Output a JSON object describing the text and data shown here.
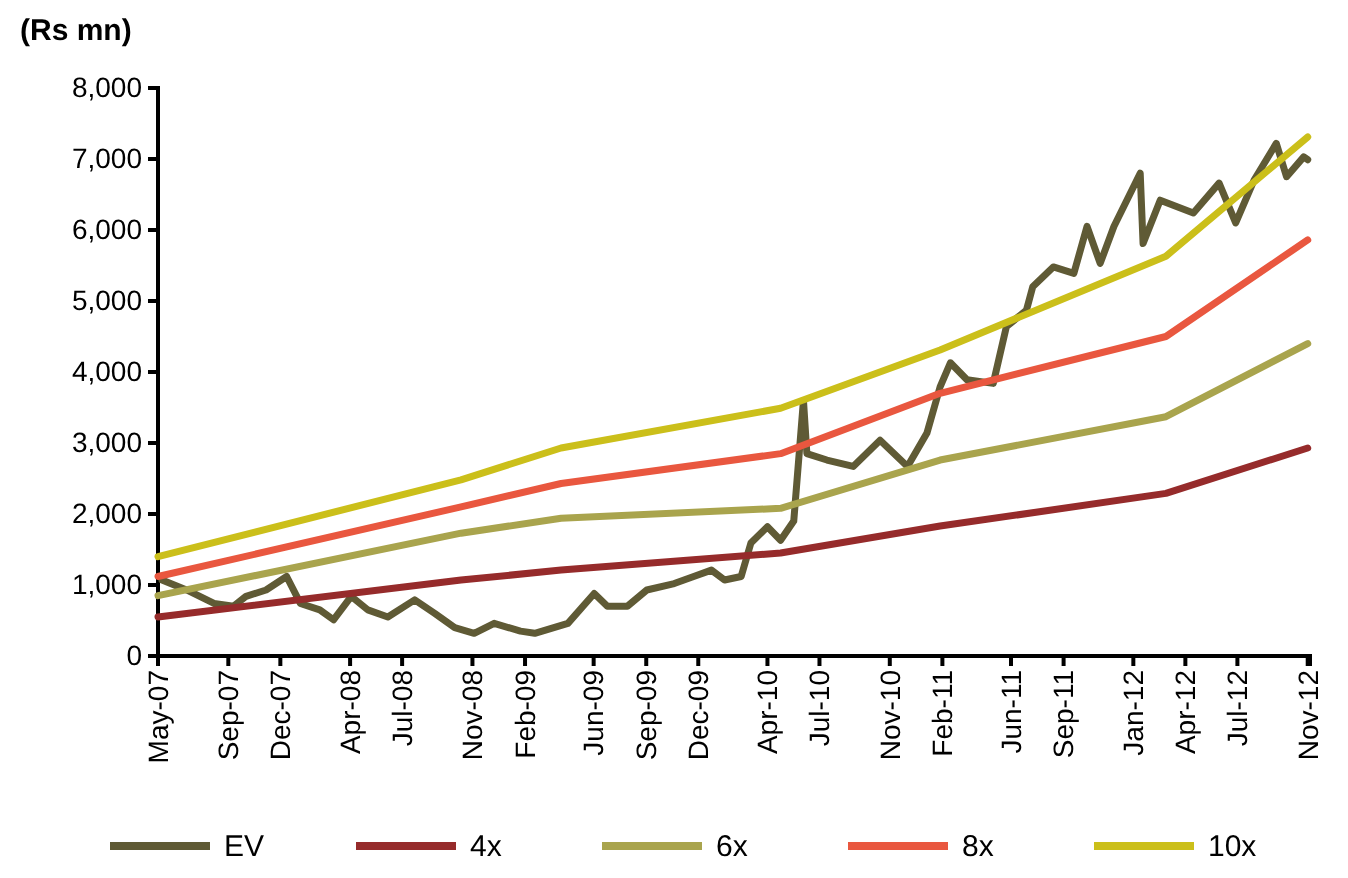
{
  "chart_data": {
    "type": "line",
    "ylabel": "(Rs mn)",
    "xlim": [
      "2007-05-01",
      "2012-11-05"
    ],
    "ylim": [
      0,
      8000
    ],
    "xticks": [
      {
        "value": "2007-05-01",
        "label": "May-07"
      },
      {
        "value": "2007-09-01",
        "label": "Sep-07"
      },
      {
        "value": "2007-12-01",
        "label": "Dec-07"
      },
      {
        "value": "2008-04-01",
        "label": "Apr-08"
      },
      {
        "value": "2008-07-01",
        "label": "Jul-08"
      },
      {
        "value": "2008-11-01",
        "label": "Nov-08"
      },
      {
        "value": "2009-02-01",
        "label": "Feb-09"
      },
      {
        "value": "2009-06-01",
        "label": "Jun-09"
      },
      {
        "value": "2009-09-01",
        "label": "Sep-09"
      },
      {
        "value": "2009-12-01",
        "label": "Dec-09"
      },
      {
        "value": "2010-04-01",
        "label": "Apr-10"
      },
      {
        "value": "2010-07-01",
        "label": "Jul-10"
      },
      {
        "value": "2010-11-01",
        "label": "Nov-10"
      },
      {
        "value": "2011-02-01",
        "label": "Feb-11"
      },
      {
        "value": "2011-06-01",
        "label": "Jun-11"
      },
      {
        "value": "2011-09-01",
        "label": "Sep-11"
      },
      {
        "value": "2012-01-01",
        "label": "Jan-12"
      },
      {
        "value": "2012-04-01",
        "label": "Apr-12"
      },
      {
        "value": "2012-07-01",
        "label": "Jul-12"
      },
      {
        "value": "2012-11-01",
        "label": "Nov-12"
      }
    ],
    "yticks": [
      {
        "value": 0,
        "label": "0"
      },
      {
        "value": 1000,
        "label": "1,000"
      },
      {
        "value": 2000,
        "label": "2,000"
      },
      {
        "value": 3000,
        "label": "3,000"
      },
      {
        "value": 4000,
        "label": "4,000"
      },
      {
        "value": 5000,
        "label": "5,000"
      },
      {
        "value": 6000,
        "label": "6,000"
      },
      {
        "value": 7000,
        "label": "7,000"
      },
      {
        "value": 8000,
        "label": "8,000"
      }
    ],
    "grid": false,
    "legend": "bottom",
    "marker": "none",
    "line_style": "solid",
    "series": [
      {
        "name": "EV",
        "color": "#5f5a35",
        "x": [
          "2007-05-08",
          "2007-06-20",
          "2007-08-07",
          "2007-09-10",
          "2007-10-02",
          "2007-11-06",
          "2007-12-12",
          "2008-01-05",
          "2008-02-08",
          "2008-03-03",
          "2008-04-03",
          "2008-05-02",
          "2008-06-06",
          "2008-07-23",
          "2008-08-27",
          "2008-10-01",
          "2008-11-04",
          "2008-12-09",
          "2009-01-24",
          "2009-02-18",
          "2009-04-17",
          "2009-06-02",
          "2009-06-25",
          "2009-07-30",
          "2009-09-02",
          "2009-10-20",
          "2009-11-23",
          "2009-12-24",
          "2010-01-16",
          "2010-02-14",
          "2010-03-03",
          "2010-04-01",
          "2010-04-24",
          "2010-05-17",
          "2010-06-03",
          "2010-06-09",
          "2010-07-14",
          "2010-08-29",
          "2010-10-15",
          "2010-12-02",
          "2011-01-05",
          "2011-01-28",
          "2011-02-15",
          "2011-03-16",
          "2011-05-01",
          "2011-05-24",
          "2011-06-28",
          "2011-07-09",
          "2011-08-14",
          "2011-09-19",
          "2011-10-12",
          "2011-11-04",
          "2011-11-28",
          "2012-01-13",
          "2012-01-18",
          "2012-02-17",
          "2012-04-15",
          "2012-05-30",
          "2012-06-28",
          "2012-07-30",
          "2012-09-07",
          "2012-09-25",
          "2012-10-25",
          "2012-11-01"
        ],
        "values": [
          1070,
          930,
          740,
          700,
          840,
          930,
          1120,
          740,
          650,
          510,
          840,
          650,
          550,
          790,
          600,
          400,
          320,
          460,
          350,
          320,
          460,
          880,
          700,
          700,
          930,
          1020,
          1120,
          1210,
          1070,
          1120,
          1590,
          1820,
          1630,
          1900,
          3600,
          2850,
          2760,
          2670,
          3040,
          2670,
          3140,
          3790,
          4130,
          3890,
          3840,
          4640,
          4870,
          5200,
          5480,
          5390,
          6050,
          5530,
          6050,
          6800,
          5810,
          6420,
          6240,
          6660,
          6100,
          6700,
          7220,
          6750,
          7030,
          6990
        ]
      },
      {
        "name": "4x",
        "color": "#962b2b",
        "x": [
          "2007-05-01",
          "2008-10-12",
          "2009-04-05",
          "2010-04-24",
          "2011-01-28",
          "2012-02-27",
          "2012-11-01"
        ],
        "values": [
          550,
          1070,
          1210,
          1450,
          1830,
          2290,
          2930
        ]
      },
      {
        "name": "6x",
        "color": "#a9a44d",
        "x": [
          "2007-05-01",
          "2008-10-12",
          "2009-04-05",
          "2010-04-24",
          "2011-01-28",
          "2012-02-27",
          "2012-11-01"
        ],
        "values": [
          850,
          1730,
          1940,
          2080,
          2760,
          3370,
          4400
        ]
      },
      {
        "name": "8x",
        "color": "#e9573f",
        "x": [
          "2007-05-01",
          "2008-10-12",
          "2009-04-05",
          "2010-04-24",
          "2011-01-28",
          "2012-02-27",
          "2012-11-01"
        ],
        "values": [
          1120,
          2100,
          2430,
          2850,
          3700,
          4500,
          5860
        ]
      },
      {
        "name": "10x",
        "color": "#cbbf1a",
        "x": [
          "2007-05-01",
          "2008-10-12",
          "2009-04-05",
          "2010-04-24",
          "2011-01-28",
          "2012-02-27",
          "2012-11-01"
        ],
        "values": [
          1400,
          2480,
          2930,
          3490,
          4310,
          5630,
          7310
        ]
      }
    ]
  }
}
